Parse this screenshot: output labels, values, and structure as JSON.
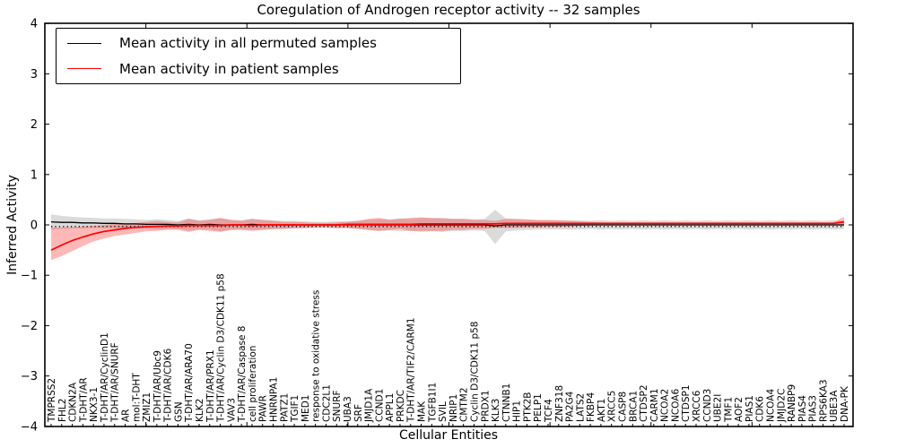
{
  "chart_data": {
    "type": "line",
    "title": "Coregulation of Androgen receptor activity -- 32 samples",
    "xlabel": "Cellular Entities",
    "ylabel": "Inferred Activity",
    "ylim": [
      -4,
      4
    ],
    "yticks": [
      4,
      3,
      2,
      1,
      0,
      -1,
      -2,
      -3,
      -4
    ],
    "grid": false,
    "legend_position": "upper left",
    "zero_line": {
      "value": 0,
      "style": "dotted",
      "color": "#000000"
    },
    "categories": [
      "TMPRSS2",
      "FHL2",
      "CDKN2A",
      "T-DHT/AR",
      "NKX3-1",
      "T-DHT/AR/CyclinD1",
      "T-DHT/AR/SNURF",
      "AR",
      "mol:T-DHT",
      "ZMIZ1",
      "T-DHT/AR/Ubc9",
      "T-DHT/AR/CDK6",
      "GSN",
      "T-DHT/AR/ARA70",
      "KLK2",
      "T-DHT/AR/PRX1",
      "T-DHT/AR/Cyclin D3/CDK11 p58",
      "VAV3",
      "T-DHT/AR/Caspase 8",
      "cell proliferation",
      "PAWR",
      "HNRNPA1",
      "PATZ1",
      "TGIF1",
      "MED1",
      "response to oxidative stress",
      "CDC2L1",
      "SNURF",
      "UBA3",
      "SRF",
      "JMJD1A",
      "CCND1",
      "APPL1",
      "PRKDC",
      "T-DHT/AR/TIF2/CARM1",
      "MAK",
      "TGFB1I1",
      "SVIL",
      "NRIP1",
      "CMTM2",
      "Cyclin D3/CDK11 p58",
      "PRDX1",
      "KLK3",
      "CTNNB1",
      "HIP1",
      "PTK2B",
      "PELP1",
      "TCF4",
      "ZNF318",
      "PA2G4",
      "LATS2",
      "FKBP4",
      "AKT1",
      "XRCC5",
      "CASP8",
      "BRCA1",
      "CTDSP2",
      "CARM1",
      "NCOA2",
      "NCOA6",
      "CTDSP1",
      "XRCC6",
      "CCND3",
      "UBE2I",
      "TMF1",
      "AOF2",
      "PIAS1",
      "CDK6",
      "NCOA4",
      "JMJD2C",
      "RANBP9",
      "PIAS4",
      "PIAS3",
      "RPS6KA3",
      "UBE3A",
      "DNA-PK"
    ],
    "series": [
      {
        "name": "Mean activity in all permuted samples",
        "color": "#000000",
        "band_color": "#999999",
        "band_opacity": 0.35,
        "values": [
          0.06,
          0.05,
          0.05,
          0.04,
          0.04,
          0.03,
          0.03,
          0.02,
          0.02,
          0.01,
          0.01,
          0.01,
          0,
          0.01,
          0,
          0.01,
          0,
          0,
          0,
          0.01,
          0,
          0,
          0,
          0,
          0,
          0,
          0,
          0,
          0,
          0,
          0,
          0,
          0,
          0,
          0,
          0,
          0,
          0,
          0,
          0,
          0,
          0,
          -0.02,
          0,
          0,
          0,
          0,
          0,
          0,
          0,
          0,
          0,
          0,
          0,
          0,
          0,
          0,
          0,
          0,
          0,
          0,
          0,
          0,
          0,
          0,
          0,
          0,
          0,
          0,
          0,
          0,
          0,
          0,
          0,
          0,
          0
        ],
        "band_upper": [
          0.21,
          0.18,
          0.16,
          0.15,
          0.14,
          0.13,
          0.13,
          0.12,
          0.11,
          0.1,
          0.11,
          0.1,
          0.08,
          0.13,
          0.09,
          0.11,
          0.13,
          0.1,
          0.09,
          0.12,
          0.1,
          0.09,
          0.08,
          0.08,
          0.07,
          0.06,
          0.06,
          0.07,
          0.07,
          0.08,
          0.1,
          0.12,
          0.11,
          0.13,
          0.12,
          0.14,
          0.13,
          0.14,
          0.12,
          0.12,
          0.11,
          0.12,
          0.3,
          0.13,
          0.11,
          0.1,
          0.09,
          0.09,
          0.09,
          0.09,
          0.09,
          0.08,
          0.09,
          0.08,
          0.09,
          0.08,
          0.09,
          0.08,
          0.09,
          0.08,
          0.09,
          0.08,
          0.09,
          0.08,
          0.09,
          0.08,
          0.09,
          0.08,
          0.09,
          0.08,
          0.09,
          0.08,
          0.09,
          0.08,
          0.09,
          0.08
        ],
        "band_lower": [
          -0.09,
          -0.08,
          -0.07,
          -0.07,
          -0.06,
          -0.07,
          -0.07,
          -0.08,
          -0.07,
          -0.08,
          -0.09,
          -0.08,
          -0.08,
          -0.11,
          -0.09,
          -0.09,
          -0.13,
          -0.1,
          -0.09,
          -0.1,
          -0.1,
          -0.09,
          -0.08,
          -0.08,
          -0.07,
          -0.06,
          -0.06,
          -0.07,
          -0.07,
          -0.08,
          -0.1,
          -0.12,
          -0.11,
          -0.13,
          -0.12,
          -0.14,
          -0.13,
          -0.14,
          -0.12,
          -0.12,
          -0.11,
          -0.12,
          -0.38,
          -0.13,
          -0.11,
          -0.1,
          -0.09,
          -0.09,
          -0.09,
          -0.09,
          -0.09,
          -0.08,
          -0.09,
          -0.08,
          -0.09,
          -0.08,
          -0.09,
          -0.08,
          -0.09,
          -0.08,
          -0.09,
          -0.08,
          -0.09,
          -0.08,
          -0.09,
          -0.08,
          -0.09,
          -0.08,
          -0.09,
          -0.08,
          -0.09,
          -0.08,
          -0.09,
          -0.08,
          -0.09,
          -0.08
        ]
      },
      {
        "name": "Mean activity in patient samples",
        "color": "#ff0000",
        "band_color": "#ff3333",
        "band_opacity": 0.35,
        "values": [
          -0.5,
          -0.4,
          -0.31,
          -0.24,
          -0.18,
          -0.13,
          -0.1,
          -0.07,
          -0.05,
          -0.04,
          -0.03,
          -0.02,
          -0.02,
          -0.01,
          -0.01,
          -0.01,
          -0.01,
          0,
          0,
          -0.01,
          0,
          0,
          0,
          0,
          0,
          0,
          0,
          0,
          0.01,
          0.01,
          0.01,
          0.01,
          0.01,
          0.01,
          0.01,
          0.02,
          0.02,
          0.02,
          0.02,
          0.02,
          0.02,
          0.02,
          0.02,
          0.03,
          0.03,
          0.03,
          0.03,
          0.03,
          0.03,
          0.03,
          0.03,
          0.03,
          0.03,
          0.03,
          0.03,
          0.03,
          0.03,
          0.03,
          0.03,
          0.03,
          0.03,
          0.03,
          0.03,
          0.03,
          0.03,
          0.03,
          0.03,
          0.03,
          0.03,
          0.03,
          0.03,
          0.03,
          0.03,
          0.03,
          0.03,
          0.06
        ],
        "band_upper": [
          -0.05,
          -0.05,
          -0.04,
          -0.03,
          -0.02,
          0,
          0.02,
          0.03,
          0.04,
          0.06,
          0.08,
          0.06,
          0.05,
          0.12,
          0.08,
          0.1,
          0.14,
          0.1,
          0.08,
          0.12,
          0.1,
          0.08,
          0.06,
          0.06,
          0.05,
          0.04,
          0.04,
          0.05,
          0.06,
          0.08,
          0.12,
          0.14,
          0.1,
          0.12,
          0.14,
          0.15,
          0.14,
          0.13,
          0.12,
          0.12,
          0.1,
          0.1,
          0.08,
          0.12,
          0.12,
          0.11,
          0.1,
          0.1,
          0.09,
          0.08,
          0.07,
          0.06,
          0.05,
          0.05,
          0.05,
          0.05,
          0.05,
          0.05,
          0.05,
          0.05,
          0.05,
          0.05,
          0.05,
          0.05,
          0.05,
          0.05,
          0.05,
          0.05,
          0.05,
          0.05,
          0.05,
          0.05,
          0.05,
          0.05,
          0.05,
          0.16
        ],
        "band_lower": [
          -0.7,
          -0.62,
          -0.52,
          -0.42,
          -0.33,
          -0.27,
          -0.22,
          -0.19,
          -0.16,
          -0.13,
          -0.12,
          -0.1,
          -0.1,
          -0.14,
          -0.1,
          -0.12,
          -0.14,
          -0.1,
          -0.1,
          -0.12,
          -0.1,
          -0.08,
          -0.08,
          -0.06,
          -0.06,
          -0.05,
          -0.05,
          -0.06,
          -0.06,
          -0.08,
          -0.1,
          -0.12,
          -0.1,
          -0.08,
          -0.12,
          -0.12,
          -0.12,
          -0.12,
          -0.1,
          -0.1,
          -0.08,
          -0.08,
          -0.06,
          -0.06,
          -0.06,
          -0.05,
          -0.05,
          -0.04,
          -0.04,
          -0.03,
          -0.02,
          -0.01,
          0,
          0,
          0,
          0,
          0,
          0,
          0,
          0,
          0,
          0,
          0,
          0,
          0,
          0,
          0,
          0,
          0,
          0,
          0,
          0,
          0,
          0,
          0,
          -0.02
        ]
      }
    ]
  }
}
